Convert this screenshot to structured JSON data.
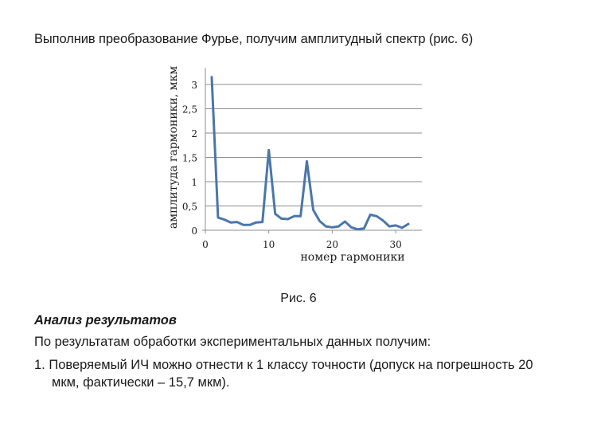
{
  "intro_text": "Выполнив преобразование Фурье, получим амплитудный спектр (рис. 6)",
  "figure_caption": "Рис. 6",
  "section_title": "Анализ результатов",
  "paragraph": "По результатам обработки экспериментальных данных получим:",
  "list_item": {
    "line1": "1. Поверяемый ИЧ можно отнести к 1 классу точности (допуск на погрешность 20",
    "line2": "мкм, фактически – 15,7 мкм)."
  },
  "chart_data": {
    "type": "line",
    "title": "",
    "xlabel": "номер гармоники",
    "ylabel": "амплитуда гармоники, мкм",
    "xlim": [
      0,
      34
    ],
    "ylim": [
      0,
      3.5
    ],
    "x_ticks": [
      "0",
      "10",
      "20",
      "30"
    ],
    "y_ticks": [
      "0",
      "0,5",
      "1",
      "1,5",
      "2",
      "2,5",
      "3"
    ],
    "grid": "horizontal",
    "legend": "none",
    "line_color": "#4a76ad",
    "series": [
      {
        "name": "амплитуда",
        "x": [
          1,
          2,
          3,
          4,
          5,
          6,
          7,
          8,
          9,
          10,
          11,
          12,
          13,
          14,
          15,
          16,
          17,
          18,
          19,
          20,
          21,
          22,
          23,
          24,
          25,
          26,
          27,
          28,
          29,
          30,
          31,
          32
        ],
        "values": [
          3.15,
          0.26,
          0.22,
          0.16,
          0.17,
          0.11,
          0.11,
          0.16,
          0.17,
          1.65,
          0.34,
          0.24,
          0.23,
          0.29,
          0.29,
          1.42,
          0.42,
          0.19,
          0.08,
          0.06,
          0.08,
          0.18,
          0.06,
          0.02,
          0.04,
          0.32,
          0.29,
          0.2,
          0.08,
          0.1,
          0.05,
          0.13
        ]
      }
    ]
  }
}
